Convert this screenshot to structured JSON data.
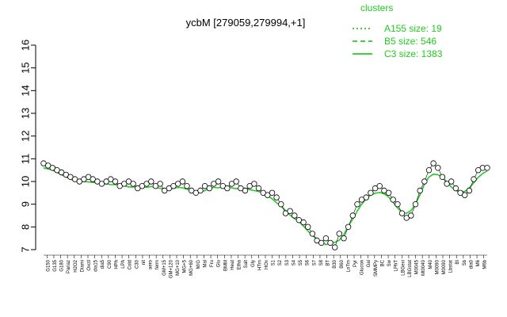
{
  "chart_data": {
    "type": "line",
    "title": "ycbM [279059,279994,+1]",
    "xlabel": "",
    "ylabel": "",
    "ylim": [
      7,
      16
    ],
    "yticks": [
      7,
      8,
      9,
      10,
      11,
      12,
      13,
      14,
      15,
      16
    ],
    "grid": false,
    "legend": {
      "title": "clusters",
      "placement": "top-right",
      "color": "#22cc22",
      "entries": [
        {
          "label": "A155 size: 19",
          "style": "dotted"
        },
        {
          "label": "B5 size: 546",
          "style": "dashed"
        },
        {
          "label": "C3 size: 1383",
          "style": "solid"
        }
      ]
    },
    "xtick_labels": [
      "G150",
      "G135",
      "G180",
      "Pariaz",
      "H2O2",
      "Diami",
      "Oxctl",
      "dia15",
      "dia5",
      "C90",
      "HPh",
      "LPh",
      "Cold",
      "C30",
      "nit",
      "aero",
      "ferm",
      "GM+15",
      "GM+120",
      "MG+10",
      "MG+5",
      "MG+60",
      "M/G",
      "Mal",
      "Fru",
      "Glu",
      "BMM",
      "Heat",
      "Etha",
      "Salt",
      "Gly",
      "HTm",
      "HOx",
      "S1",
      "S2",
      "S3",
      "S4",
      "S5",
      "S6",
      "S7",
      "S8",
      "BT",
      "B30",
      "B60",
      "LoTm",
      "Pyr",
      "Glucon",
      "Gal",
      "SMMPy",
      "BC",
      "Sw",
      "LPhT",
      "LBGexi",
      "LBGstat",
      "M0045",
      "Mt0040",
      "M40",
      "M0090",
      "M0090",
      "Lbstat",
      "BI",
      "Sb",
      "dia0",
      "M6",
      "M6b"
    ],
    "x_dense": {
      "start": 0,
      "end": 1,
      "n": 200
    },
    "series": [
      {
        "style": "points",
        "values": [
          10.8,
          10.7,
          10.6,
          10.5,
          10.4,
          10.3,
          10.2,
          10.1,
          10.0,
          10.1,
          10.2,
          10.1,
          10.0,
          9.9,
          10.0,
          10.1,
          10.0,
          9.8,
          9.9,
          10.0,
          9.9,
          9.7,
          9.8,
          9.9,
          10.0,
          9.8,
          9.9,
          9.6,
          9.7,
          9.8,
          9.9,
          10.0,
          9.8,
          9.6,
          9.5,
          9.6,
          9.8,
          9.7,
          9.9,
          10.0,
          9.8,
          9.7,
          9.9,
          10.0,
          9.7,
          9.6,
          9.8,
          9.9,
          9.7,
          9.5,
          9.4,
          9.5,
          9.3,
          9.0,
          8.6,
          8.7,
          8.5,
          8.3,
          8.2,
          8.0,
          7.7,
          7.4,
          7.3,
          7.5,
          7.3,
          7.1,
          7.7,
          7.5,
          8.0,
          8.5,
          9.0,
          9.2,
          9.3,
          9.5,
          9.7,
          9.8,
          9.6,
          9.5,
          9.2,
          9.0,
          8.6,
          8.4,
          8.5,
          9.0,
          9.6,
          10.0,
          10.5,
          10.8,
          10.6,
          10.2,
          9.9,
          10.0,
          9.7,
          9.5,
          9.4,
          9.6,
          10.1,
          10.5,
          10.6,
          10.6
        ]
      }
    ]
  }
}
